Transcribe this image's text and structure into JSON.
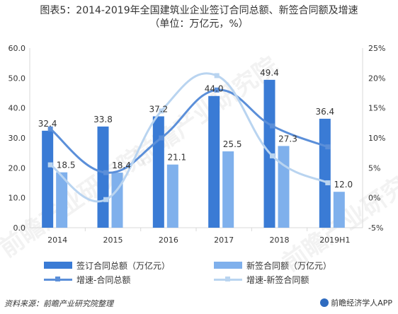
{
  "title": {
    "line1": "图表5：2014-2019年全国建筑业企业签订合同总额、新签合同额及增速",
    "line2": "（单位：万亿元，%）"
  },
  "footer": {
    "source": "资料来源：前瞻产业研究院整理",
    "brand": "前瞻经济学人APP"
  },
  "watermark": "前瞻产业研究院",
  "colors": {
    "bar_total": "#3a7bd5",
    "bar_new": "#7fb0ec",
    "line_total": "#5b8fd9",
    "line_new": "#b9d4f0"
  },
  "chart_data": {
    "type": "bar",
    "categories": [
      "2014",
      "2015",
      "2016",
      "2017",
      "2018",
      "2019H1"
    ],
    "series": [
      {
        "name": "签订合同总额（万亿元）",
        "type": "bar",
        "axis": "left",
        "values": [
          32.4,
          33.8,
          37.2,
          44.0,
          49.4,
          36.4
        ],
        "labels": [
          "32.4",
          "33.8",
          "37.2",
          "44.0",
          "49.4",
          "36.4"
        ]
      },
      {
        "name": "新签合同额（万亿元）",
        "type": "bar",
        "axis": "left",
        "values": [
          18.5,
          18.4,
          21.1,
          25.5,
          27.3,
          12.0
        ],
        "labels": [
          "18.5",
          "18.4",
          "21.1",
          "25.5",
          "27.3",
          "12.0"
        ]
      },
      {
        "name": "增速-合同总额",
        "type": "line",
        "axis": "right",
        "values": [
          11.5,
          4.2,
          10.0,
          18.0,
          12.0,
          8.5
        ]
      },
      {
        "name": "增速-新签合同额",
        "type": "line",
        "axis": "right",
        "values": [
          5.5,
          -0.3,
          14.5,
          20.4,
          7.0,
          2.5
        ]
      }
    ],
    "left_axis": {
      "min": 0,
      "max": 60,
      "ticks": [
        "0.0",
        "10.0",
        "20.0",
        "30.0",
        "40.0",
        "50.0",
        "60.0"
      ]
    },
    "right_axis": {
      "min": -5,
      "max": 25,
      "ticks": [
        "-5%",
        "0%",
        "5%",
        "10%",
        "15%",
        "20%",
        "25%"
      ]
    },
    "legend_position": "bottom",
    "grid": false
  }
}
